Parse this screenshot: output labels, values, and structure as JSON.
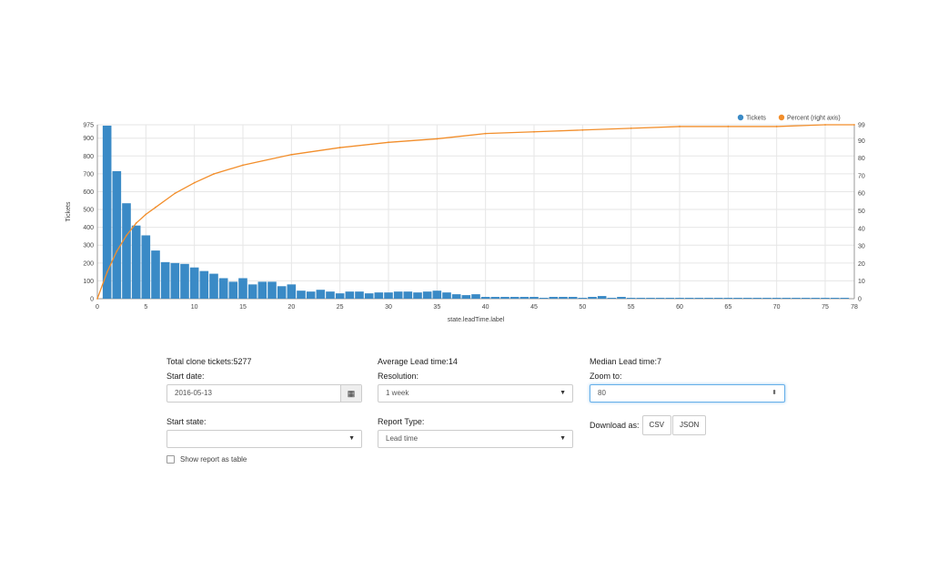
{
  "chart_data": {
    "type": "bar",
    "xlabel": "state.leadTime.label",
    "ylabel": "Tickets",
    "xlim": [
      0,
      78
    ],
    "ylim": [
      0,
      975
    ],
    "ylim_right": [
      0,
      99
    ],
    "x_ticks": [
      0,
      5,
      10,
      15,
      20,
      25,
      30,
      35,
      40,
      45,
      50,
      55,
      60,
      65,
      70,
      75,
      78
    ],
    "y_ticks": [
      0,
      100,
      200,
      300,
      400,
      500,
      600,
      700,
      800,
      900,
      975
    ],
    "y_ticks_right": [
      0,
      10,
      20,
      30,
      40,
      50,
      60,
      70,
      80,
      90,
      99
    ],
    "legend_position": "top-right",
    "grid": true,
    "series": [
      {
        "name": "Tickets",
        "color": "#3a8ac6",
        "kind": "bar",
        "x": [
          1,
          2,
          3,
          4,
          5,
          6,
          7,
          8,
          9,
          10,
          11,
          12,
          13,
          14,
          15,
          16,
          17,
          18,
          19,
          20,
          21,
          22,
          23,
          24,
          25,
          26,
          27,
          28,
          29,
          30,
          31,
          32,
          33,
          34,
          35,
          36,
          37,
          38,
          39,
          40,
          41,
          42,
          43,
          44,
          45,
          46,
          47,
          48,
          49,
          50,
          51,
          52,
          53,
          54,
          55,
          56,
          57,
          58,
          59,
          60,
          61,
          62,
          63,
          64,
          65,
          66,
          67,
          68,
          69,
          70,
          71,
          72,
          73,
          74,
          75,
          76,
          77
        ],
        "values": [
          970,
          715,
          535,
          410,
          355,
          270,
          205,
          200,
          195,
          175,
          155,
          140,
          115,
          95,
          115,
          80,
          95,
          95,
          70,
          80,
          45,
          40,
          50,
          40,
          30,
          40,
          40,
          30,
          35,
          35,
          40,
          40,
          35,
          40,
          45,
          35,
          25,
          20,
          25,
          10,
          10,
          10,
          10,
          10,
          10,
          5,
          10,
          10,
          10,
          5,
          10,
          15,
          5,
          10,
          5,
          5,
          5,
          5,
          5,
          5,
          5,
          5,
          5,
          5,
          5,
          5,
          5,
          5,
          5,
          5,
          5,
          5,
          5,
          5,
          5,
          5,
          5
        ]
      },
      {
        "name": "Percent (right axis)",
        "color": "#f28e2b",
        "kind": "line",
        "x": [
          0,
          1,
          2,
          3,
          4,
          5,
          6,
          8,
          10,
          12,
          15,
          20,
          25,
          30,
          35,
          40,
          45,
          50,
          55,
          60,
          65,
          70,
          75,
          78
        ],
        "values": [
          0,
          15,
          27,
          36,
          43,
          48,
          52,
          60,
          66,
          71,
          76,
          82,
          86,
          89,
          91,
          94,
          95,
          96,
          97,
          98,
          98,
          98,
          99,
          99
        ]
      }
    ]
  },
  "controls": {
    "total_clone_tickets": "Total clone tickets:5277",
    "start_date_label": "Start date:",
    "start_date_value": "2016-05-13",
    "start_state_label": "Start state:",
    "start_state_value": "",
    "show_table_label": "Show report as table",
    "avg_lead_time": "Average Lead time:14",
    "resolution_label": "Resolution:",
    "resolution_value": "1 week",
    "report_type_label": "Report Type:",
    "report_type_value": "Lead time",
    "median_lead_time": "Median Lead time:7",
    "zoom_label": "Zoom to:",
    "zoom_value": "80",
    "download_label": "Download as:",
    "csv_label": "CSV",
    "json_label": "JSON"
  }
}
